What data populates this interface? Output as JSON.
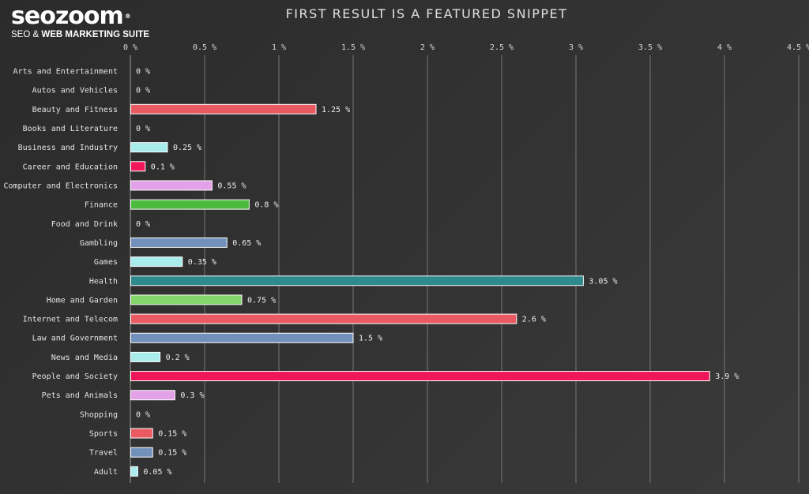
{
  "logo": {
    "name": "seozoom",
    "tagline_pre": "SEO & ",
    "tagline_bold": "WEB MARKETING SUITE",
    "reg_mark": "®"
  },
  "chart_data": {
    "type": "bar",
    "orientation": "horizontal",
    "title": "FIRST RESULT IS A FEATURED SNIPPET",
    "xlim": [
      0,
      4.5
    ],
    "unit": "%",
    "tick_labels": [
      "0 %",
      "0.5 %",
      "1 %",
      "1.5 %",
      "2 %",
      "2.5 %",
      "3 %",
      "3.5 %",
      "4 %",
      "4.5 %"
    ],
    "grid": true,
    "categories": [
      "Arts and Entertainment",
      "Autos and Vehicles",
      "Beauty and Fitness",
      "Books and Literature",
      "Business and Industry",
      "Career and Education",
      "Computer and Electronics",
      "Finance",
      "Food and Drink",
      "Gambling",
      "Games",
      "Health",
      "Home and Garden",
      "Internet and Telecom",
      "Law and Government",
      "News and Media",
      "People and Society",
      "Pets and Animals",
      "Shopping",
      "Sports",
      "Travel",
      "Adult"
    ],
    "values": [
      0,
      0,
      1.25,
      0,
      0.25,
      0.1,
      0.55,
      0.8,
      0,
      0.65,
      0.35,
      3.05,
      0.75,
      2.6,
      1.5,
      0.2,
      3.9,
      0.3,
      0,
      0.15,
      0.15,
      0.05
    ],
    "value_labels": [
      "0 %",
      "0 %",
      "1.25 %",
      "0 %",
      "0.25 %",
      "0.1 %",
      "0.55 %",
      "0.8 %",
      "0 %",
      "0.65 %",
      "0.35 %",
      "3.05 %",
      "0.75 %",
      "2.6 %",
      "1.5 %",
      "0.2 %",
      "3.9 %",
      "0.3 %",
      "0 %",
      "0.15 %",
      "0.15 %",
      "0.05 %"
    ],
    "colors": [
      "#e8616a",
      "#e8616a",
      "#ea5a62",
      "#ea5a62",
      "#a9ecec",
      "#f0165a",
      "#e3a1e8",
      "#4cba3c",
      "#4cba3c",
      "#7290bc",
      "#a9ecec",
      "#2e8a8c",
      "#84d66a",
      "#ea5a62",
      "#7290bc",
      "#a9ecec",
      "#f0165a",
      "#e3a1e8",
      "#e3a1e8",
      "#ea5a62",
      "#7290bc",
      "#a9ecec"
    ]
  }
}
